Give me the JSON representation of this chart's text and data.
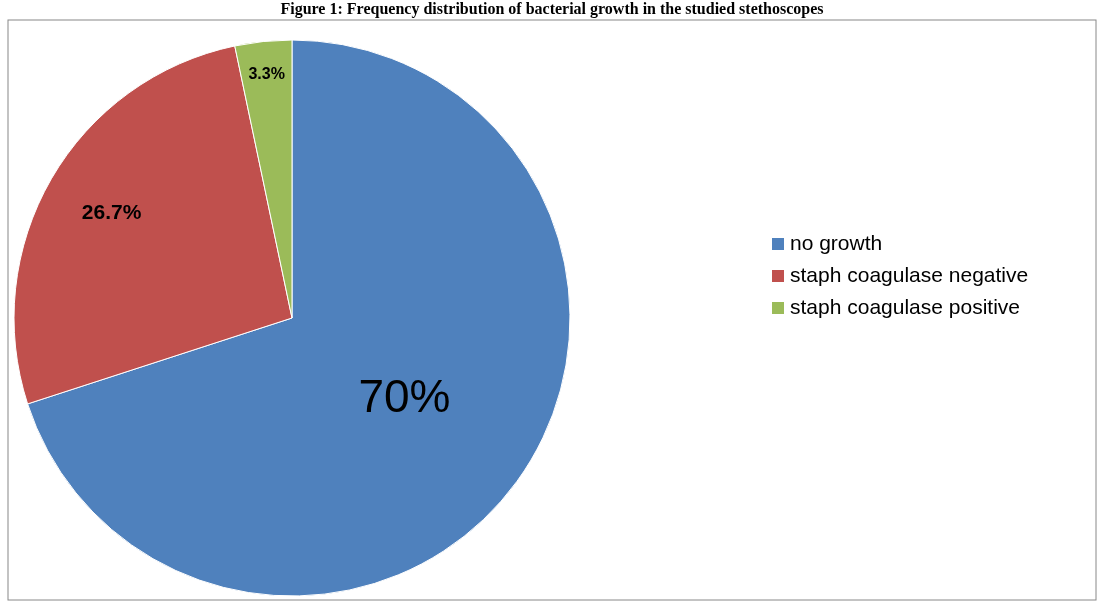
{
  "chart_data": {
    "type": "pie",
    "title": "Figure 1: Frequency distribution of bacterial growth in the studied stethoscopes",
    "categories": [
      "no growth",
      "staph coagulase negative",
      "staph coagulase positive"
    ],
    "values": [
      70,
      26.7,
      3.3
    ],
    "colors": [
      "#4f81bd",
      "#c0504d",
      "#9bbb59"
    ],
    "value_labels": [
      "70%",
      "26.7%",
      "3.3%"
    ],
    "legend": "right"
  }
}
